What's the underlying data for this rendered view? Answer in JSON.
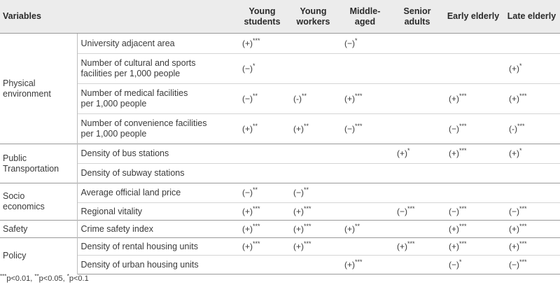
{
  "headers": {
    "variables": "Variables",
    "col1": [
      "Young",
      "students"
    ],
    "col2": [
      "Young",
      "workers"
    ],
    "col3": [
      "Middle-",
      "aged"
    ],
    "col4": [
      "Senior",
      "adults"
    ],
    "col5": [
      "Early elderly"
    ],
    "col6": [
      "Late elderly"
    ]
  },
  "categories": {
    "physical": [
      "Physical",
      "environment"
    ],
    "transport": [
      "Public",
      "Transportation"
    ],
    "socio": [
      "Socio",
      "economics"
    ],
    "safety": [
      "Safety"
    ],
    "policy": [
      "Policy"
    ]
  },
  "rows": [
    {
      "name": [
        "University adjacent area"
      ],
      "cells": [
        {
          "s": "(+)",
          "p": "***"
        },
        null,
        {
          "s": "(−)",
          "p": "*"
        },
        null,
        null,
        null
      ]
    },
    {
      "name": [
        "Number of cultural and sports",
        "facilities per 1,000 people"
      ],
      "cells": [
        {
          "s": "(−)",
          "p": "*"
        },
        null,
        null,
        null,
        null,
        {
          "s": "(+)",
          "p": "*"
        }
      ]
    },
    {
      "name": [
        "Number of medical facilities",
        "per 1,000 people"
      ],
      "cells": [
        {
          "s": "(−)",
          "p": "**"
        },
        {
          "s": "(-)",
          "p": "**"
        },
        {
          "s": "(+)",
          "p": "***"
        },
        null,
        {
          "s": "(+)",
          "p": "***"
        },
        {
          "s": "(+)",
          "p": "***"
        }
      ]
    },
    {
      "name": [
        "Number of convenience facilities",
        "per 1,000 people"
      ],
      "cells": [
        {
          "s": "(+)",
          "p": "**"
        },
        {
          "s": "(+)",
          "p": "**"
        },
        {
          "s": "(−)",
          "p": "***"
        },
        null,
        {
          "s": "(−)",
          "p": "***"
        },
        {
          "s": "(-)",
          "p": "***"
        }
      ]
    },
    {
      "name": [
        "Density of bus stations"
      ],
      "cells": [
        null,
        null,
        null,
        {
          "s": "(+)",
          "p": "*"
        },
        {
          "s": "(+)",
          "p": "***"
        },
        {
          "s": "(+)",
          "p": "*"
        }
      ]
    },
    {
      "name": [
        "Density of subway stations"
      ],
      "cells": [
        null,
        null,
        null,
        null,
        null,
        null
      ]
    },
    {
      "name": [
        "Average official land price"
      ],
      "cells": [
        {
          "s": "(−)",
          "p": "**"
        },
        {
          "s": "(−)",
          "p": "**"
        },
        null,
        null,
        null,
        null
      ]
    },
    {
      "name": [
        "Regional vitality"
      ],
      "cells": [
        {
          "s": "(+)",
          "p": "***"
        },
        {
          "s": "(+)",
          "p": "***"
        },
        null,
        {
          "s": "(−)",
          "p": "***"
        },
        {
          "s": "(−)",
          "p": "***"
        },
        {
          "s": "(−)",
          "p": "***"
        }
      ]
    },
    {
      "name": [
        "Crime safety index"
      ],
      "cells": [
        {
          "s": "(+)",
          "p": "***"
        },
        {
          "s": "(+)",
          "p": "***"
        },
        {
          "s": "(+)",
          "p": "**"
        },
        null,
        {
          "s": "(+)",
          "p": "***"
        },
        {
          "s": "(+)",
          "p": "***"
        }
      ]
    },
    {
      "name": [
        "Density of rental housing units"
      ],
      "cells": [
        {
          "s": "(+)",
          "p": "***"
        },
        {
          "s": "(+)",
          "p": "***"
        },
        null,
        {
          "s": "(+)",
          "p": "***"
        },
        {
          "s": "(+)",
          "p": "***"
        },
        {
          "s": "(+)",
          "p": "***"
        }
      ]
    },
    {
      "name": [
        "Density of urban housing units"
      ],
      "cells": [
        null,
        null,
        {
          "s": "(+)",
          "p": "***"
        },
        null,
        {
          "s": "(−)",
          "p": "*"
        },
        {
          "s": "(−)",
          "p": "***"
        }
      ]
    }
  ],
  "note": [
    {
      "sup": "***",
      "text": "p<0.01, "
    },
    {
      "sup": "**",
      "text": "p<0.05, "
    },
    {
      "sup": "*",
      "text": "p<0.1"
    }
  ]
}
